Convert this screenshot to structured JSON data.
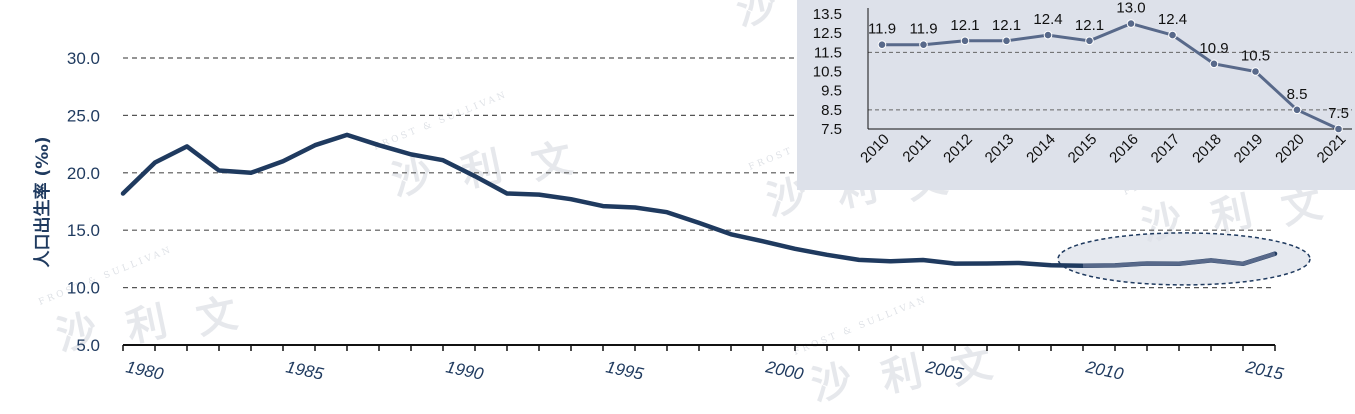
{
  "chart_data": [
    {
      "type": "line",
      "ylabel": "人口出生率 (‰)",
      "xlabel": "",
      "ylim": [
        5.0,
        30.0
      ],
      "y_ticks": [
        "30.0",
        "25.0",
        "20.0",
        "15.0",
        "10.0",
        "5.0"
      ],
      "y_tick_values": [
        30,
        25,
        20,
        15,
        10,
        5
      ],
      "x_ticks": [
        "1980",
        "1985",
        "1990",
        "1995",
        "2000",
        "2005",
        "2010",
        "2015"
      ],
      "x_tick_values": [
        1980,
        1985,
        1990,
        1995,
        2000,
        2005,
        2010,
        2015
      ],
      "grid": true,
      "highlight": {
        "from": 2010,
        "to": 2016,
        "shape": "dashed-ellipse"
      },
      "series": [
        {
          "x": [
            1980,
            1981,
            1982,
            1983,
            1984,
            1985,
            1986,
            1987,
            1988,
            1989,
            1990,
            1991,
            1992,
            1993,
            1994,
            1995,
            1996,
            1997,
            1998,
            1999,
            2000,
            2001,
            2002,
            2003,
            2004,
            2005,
            2006,
            2007,
            2008,
            2009,
            2010,
            2011,
            2012,
            2013,
            2014,
            2015,
            2016
          ],
          "values": [
            18.2,
            20.9,
            22.3,
            20.2,
            20.0,
            21.0,
            22.4,
            23.3,
            22.4,
            21.6,
            21.1,
            19.7,
            18.2,
            18.1,
            17.7,
            17.1,
            16.98,
            16.57,
            15.64,
            14.64,
            14.03,
            13.38,
            12.86,
            12.41,
            12.29,
            12.4,
            12.09,
            12.1,
            12.14,
            11.95,
            11.9,
            11.93,
            12.1,
            12.08,
            12.37,
            12.07,
            12.95
          ]
        }
      ]
    },
    {
      "type": "line",
      "categories": [
        "2010",
        "2011",
        "2012",
        "2013",
        "2014",
        "2015",
        "2016",
        "2017",
        "2018",
        "2019",
        "2020",
        "2021"
      ],
      "values": [
        11.9,
        11.9,
        12.1,
        12.1,
        12.4,
        12.1,
        13.0,
        12.4,
        10.9,
        10.5,
        8.5,
        7.5
      ],
      "data_labels": [
        "11.9",
        "11.9",
        "12.1",
        "12.1",
        "12.4",
        "12.1",
        "13.0",
        "12.4",
        "10.9",
        "10.5",
        "8.5",
        "7.5"
      ],
      "y_ticks": [
        "13.5",
        "12.5",
        "11.5",
        "10.5",
        "9.5",
        "8.5",
        "7.5"
      ],
      "y_tick_values": [
        13.5,
        12.5,
        11.5,
        10.5,
        9.5,
        8.5,
        7.5
      ],
      "ylim": [
        7.5,
        13.5
      ],
      "grid": true,
      "legend": "none"
    }
  ],
  "watermark": {
    "cn": [
      "沙",
      "利",
      "文"
    ],
    "en": "FROST & SULLIVAN"
  },
  "colors": {
    "main_line": "#1f3a5f",
    "highlight_line": "#58698a",
    "inset_bg": "#dde1ea",
    "inset_line": "#58698a"
  }
}
